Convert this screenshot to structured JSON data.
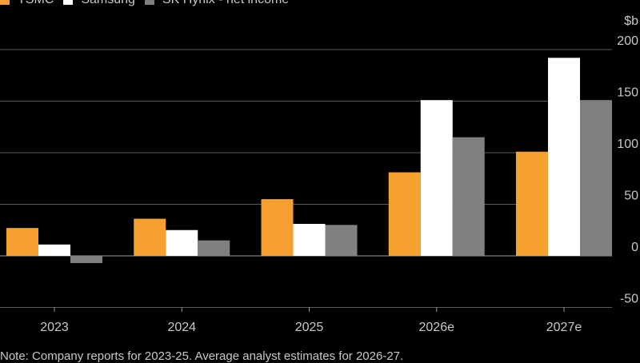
{
  "chart_data": {
    "type": "bar",
    "title": "",
    "ylabel": "$b",
    "ylim": [
      -50,
      200
    ],
    "yticks": [
      -50,
      0,
      50,
      100,
      150,
      200
    ],
    "categories": [
      "2023",
      "2024",
      "2025",
      "2026e",
      "2027e"
    ],
    "series": [
      {
        "name": "TSMC",
        "color": "#f5a031",
        "values": [
          27,
          36,
          55,
          81,
          101
        ]
      },
      {
        "name": "Samsung",
        "color": "#ffffff",
        "values": [
          11,
          25,
          31,
          151,
          192
        ]
      },
      {
        "name": "SK Hynix - net income",
        "color": "#808080",
        "values": [
          -7,
          15,
          30,
          115,
          151
        ]
      }
    ],
    "legend_position": "top-left",
    "grid": true
  },
  "legend": {
    "items": [
      {
        "label": "TSMC"
      },
      {
        "label": "Samsung"
      },
      {
        "label": "SK Hynix - net income"
      }
    ]
  },
  "unit_label": "$b",
  "note": "Note: Company reports for 2023-25. Average analyst estimates for 2026-27."
}
